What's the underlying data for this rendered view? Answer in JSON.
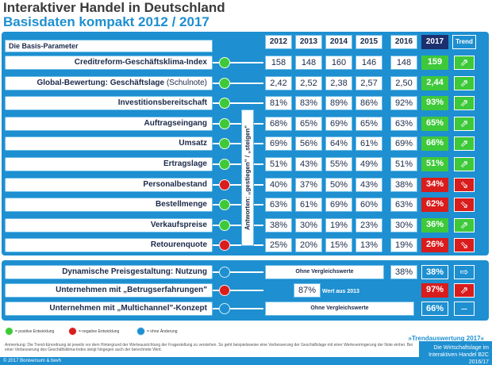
{
  "header": {
    "title": "Interaktiver Handel in Deutschland",
    "subtitle": "Basisdaten kompakt 2012 / 2017"
  },
  "table": {
    "param_header": "Die Basis-Parameter",
    "years": [
      "2012",
      "2013",
      "2014",
      "2015",
      "2016"
    ],
    "current_year": "2017",
    "trend_header": "Trend",
    "vertical_note": "Antworten: „gestiegen\" / „steigen\"",
    "rows": [
      {
        "label": "Creditreform-Geschäftsklima-Index",
        "label_suffix": "",
        "status": "green",
        "values": [
          "158",
          "148",
          "160",
          "146",
          "148"
        ],
        "current": "159",
        "trend": "up"
      },
      {
        "label": "Global-Bewertung: Geschäftslage",
        "label_suffix": " (Schulnote)",
        "status": "green",
        "values": [
          "2,42",
          "2,52",
          "2,38",
          "2,57",
          "2,50"
        ],
        "current": "2,44",
        "trend": "up"
      },
      {
        "label": "Investitionsbereitschaft",
        "label_suffix": "",
        "status": "green",
        "values": [
          "81%",
          "83%",
          "89%",
          "86%",
          "92%"
        ],
        "current": "93%",
        "trend": "up"
      },
      {
        "label": "Auftragseingang",
        "label_suffix": "",
        "status": "green",
        "values": [
          "68%",
          "65%",
          "69%",
          "65%",
          "63%"
        ],
        "current": "65%",
        "trend": "up"
      },
      {
        "label": "Umsatz",
        "label_suffix": "",
        "status": "green",
        "values": [
          "69%",
          "56%",
          "64%",
          "61%",
          "69%"
        ],
        "current": "66%",
        "trend": "up"
      },
      {
        "label": "Ertragslage",
        "label_suffix": "",
        "status": "green",
        "values": [
          "51%",
          "43%",
          "55%",
          "49%",
          "51%"
        ],
        "current": "51%",
        "trend": "up"
      },
      {
        "label": "Personalbestand",
        "label_suffix": "",
        "status": "red",
        "values": [
          "40%",
          "37%",
          "50%",
          "43%",
          "38%"
        ],
        "current": "34%",
        "trend": "down"
      },
      {
        "label": "Bestellmenge",
        "label_suffix": "",
        "status": "green",
        "values": [
          "63%",
          "61%",
          "69%",
          "60%",
          "63%"
        ],
        "current": "62%",
        "trend": "down"
      },
      {
        "label": "Verkaufspreise",
        "label_suffix": "",
        "status": "green",
        "values": [
          "38%",
          "30%",
          "19%",
          "23%",
          "30%"
        ],
        "current": "36%",
        "trend": "up"
      },
      {
        "label": "Retourenquote",
        "label_suffix": "",
        "status": "red",
        "values": [
          "25%",
          "20%",
          "15%",
          "13%",
          "19%"
        ],
        "current": "26%",
        "trend": "down"
      }
    ]
  },
  "extra": {
    "rows": [
      {
        "label": "Dynamische Preisgestaltung: Nutzung",
        "status": "blue",
        "note": "Ohne Vergleichswerte",
        "prev": "38%",
        "current": "38%",
        "trend": "right"
      },
      {
        "label": "Unternehmen mit „Betrugserfahrungen\"",
        "status": "red",
        "prev": "87%",
        "note": "Wert aus 2013",
        "current": "97%",
        "trend": "up"
      },
      {
        "label": "Unternehmen mit „Multichannel\"-Konzept",
        "status": "blue",
        "note": "Ohne Vergleichswerte",
        "current": "66%",
        "trend": "-"
      }
    ]
  },
  "legend": {
    "positive": "= positive Entwicklung",
    "negative": "= negative Entwicklung",
    "neutral": "= ohne Änderung"
  },
  "note": "Anmerkung: Die Trend-Einordnung ist jeweils vor dem Hintergrund der Werteausrichtung der Fragestellung zu verstehen. So geht beispielsweise eine Verbesserung der Geschäftslage mit einer Werteverringerung der Note einher. Bei einer Verbesserung des Geschäftsklima-Index steigt hingegen auch der berechnete Wert.",
  "footer": {
    "copyright": "© 2017 Boniversum & bevh",
    "trend_eval": "»Trendauswertung 2017«",
    "box_line1": "Die Wirtschaftslage im",
    "box_line2": "Interaktiven Handel B2C 2016/17"
  },
  "colors": {
    "accent": "#1e8fd0",
    "dark": "#1c2f6e",
    "positive": "#3ec93a",
    "negative": "#d91c1c"
  }
}
